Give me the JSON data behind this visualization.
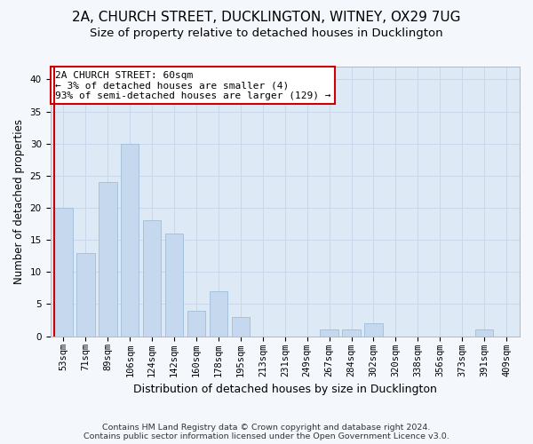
{
  "title": "2A, CHURCH STREET, DUCKLINGTON, WITNEY, OX29 7UG",
  "subtitle": "Size of property relative to detached houses in Ducklington",
  "xlabel": "Distribution of detached houses by size in Ducklington",
  "ylabel": "Number of detached properties",
  "categories": [
    "53sqm",
    "71sqm",
    "89sqm",
    "106sqm",
    "124sqm",
    "142sqm",
    "160sqm",
    "178sqm",
    "195sqm",
    "213sqm",
    "231sqm",
    "249sqm",
    "267sqm",
    "284sqm",
    "302sqm",
    "320sqm",
    "338sqm",
    "356sqm",
    "373sqm",
    "391sqm",
    "409sqm"
  ],
  "values": [
    20,
    13,
    24,
    30,
    18,
    16,
    4,
    7,
    3,
    0,
    0,
    0,
    1,
    1,
    2,
    0,
    0,
    0,
    0,
    1,
    0
  ],
  "bar_color": "#c5d8ed",
  "bar_edge_color": "#a0bdd8",
  "ylim": [
    0,
    42
  ],
  "yticks": [
    0,
    5,
    10,
    15,
    20,
    25,
    30,
    35,
    40
  ],
  "grid_color": "#c8d8ea",
  "plot_bg_color": "#ddeaf6",
  "fig_bg_color": "#f4f8fc",
  "annotation_line1": "2A CHURCH STREET: 60sqm",
  "annotation_line2": "← 3% of detached houses are smaller (4)",
  "annotation_line3": "93% of semi-detached houses are larger (129) →",
  "annotation_box_facecolor": "#ffffff",
  "annotation_box_edgecolor": "#cc0000",
  "red_line_color": "#cc0000",
  "footer_line1": "Contains HM Land Registry data © Crown copyright and database right 2024.",
  "footer_line2": "Contains public sector information licensed under the Open Government Licence v3.0.",
  "title_fontsize": 11,
  "subtitle_fontsize": 9.5,
  "xlabel_fontsize": 9,
  "ylabel_fontsize": 8.5,
  "tick_fontsize": 7.5,
  "annot_fontsize": 8,
  "footer_fontsize": 6.8
}
